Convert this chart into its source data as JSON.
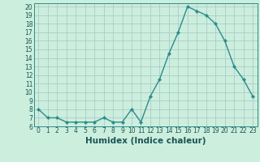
{
  "x": [
    0,
    1,
    2,
    3,
    4,
    5,
    6,
    7,
    8,
    9,
    10,
    11,
    12,
    13,
    14,
    15,
    16,
    17,
    18,
    19,
    20,
    21,
    22,
    23
  ],
  "y": [
    8,
    7,
    7,
    6.5,
    6.5,
    6.5,
    6.5,
    7,
    6.5,
    6.5,
    8,
    6.5,
    9.5,
    11.5,
    14.5,
    17,
    20,
    19.5,
    19,
    18,
    16,
    13,
    11.5,
    9.5
  ],
  "line_color": "#2d8b8b",
  "marker": "D",
  "marker_size": 2.2,
  "bg_color": "#cceedd",
  "grid_color": "#aacccc",
  "xlabel": "Humidex (Indice chaleur)",
  "xlim": [
    -0.5,
    23.5
  ],
  "ylim": [
    6,
    20.4
  ],
  "yticks": [
    6,
    7,
    8,
    9,
    10,
    11,
    12,
    13,
    14,
    15,
    16,
    17,
    18,
    19,
    20
  ],
  "xticks": [
    0,
    1,
    2,
    3,
    4,
    5,
    6,
    7,
    8,
    9,
    10,
    11,
    12,
    13,
    14,
    15,
    16,
    17,
    18,
    19,
    20,
    21,
    22,
    23
  ],
  "tick_label_size": 5.5,
  "xlabel_size": 7.5,
  "line_width": 1.0,
  "axis_color": "#2d8b8b",
  "text_color": "#1a5555"
}
